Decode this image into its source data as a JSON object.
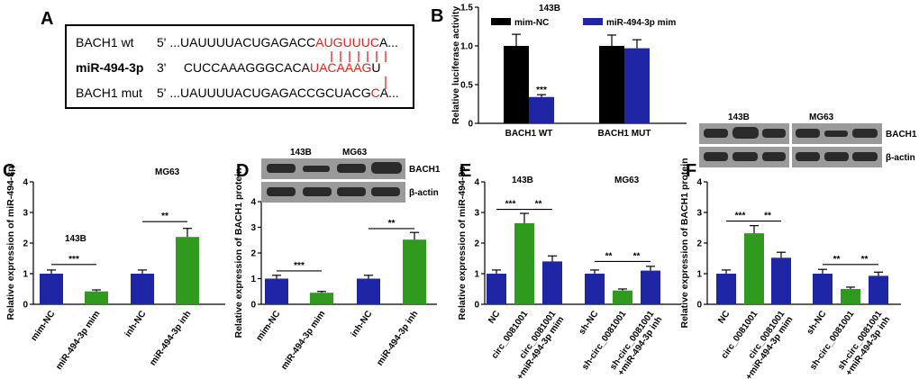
{
  "panels": {
    "A": {
      "letter": "A",
      "rows": [
        {
          "name": "BACH1 wt",
          "prime": "5'",
          "seq_black": "...UAUUUUACUGAGACC",
          "seq_red": "AUGUUUC",
          "seq_tail": "A..."
        },
        {
          "name": "miR-494-3p",
          "prime": "3'",
          "seq_black": "CUCCAAAGGGCACA",
          "seq_red": "UACAAAG",
          "seq_tail": "U"
        },
        {
          "name": "BACH1 mut",
          "prime": "5'",
          "seq_black": "...UAUUUUACUGAGACCGCUACG",
          "seq_red": "C",
          "seq_tail": "A..."
        }
      ]
    },
    "B": {
      "letter": "B"
    },
    "C": {
      "letter": "C",
      "group_labels": [
        "143B",
        "MG63"
      ]
    },
    "D": {
      "letter": "D",
      "blot": {
        "cell_lines": [
          "143B",
          "MG63"
        ],
        "bands": [
          "BACH1",
          "β-actin"
        ]
      }
    },
    "E": {
      "letter": "E",
      "group_labels": [
        "143B",
        "MG63"
      ]
    },
    "F": {
      "letter": "F",
      "blot": {
        "cell_lines": [
          "143B",
          "MG63"
        ],
        "bands": [
          "BACH1",
          "β-actin"
        ]
      }
    }
  },
  "colors": {
    "black": "#000000",
    "blue": "#1f26a6",
    "green": "#2f9a1e",
    "red": "#e3211c"
  },
  "chart_data": [
    {
      "id": "B",
      "type": "bar",
      "title": "143B",
      "categories": [
        "BACH1 WT",
        "BACH1 MUT"
      ],
      "series": [
        {
          "name": "mim-NC",
          "color": "#000000",
          "values": [
            1.0,
            1.0
          ],
          "errors": [
            0.15,
            0.14
          ]
        },
        {
          "name": "miR-494-3p mim",
          "color": "#1f26a6",
          "values": [
            0.34,
            0.97
          ],
          "errors": [
            0.03,
            0.11
          ]
        }
      ],
      "ylabel": "Relative luciferase activity",
      "ylim": [
        0,
        1.5
      ],
      "yticks": [
        0,
        0.5,
        1.0,
        1.5
      ],
      "ytick_labels": [
        "0",
        "0.5",
        "1.0",
        "1.5"
      ],
      "significance": [
        {
          "text": "***",
          "category": 0,
          "series": 1
        }
      ]
    },
    {
      "id": "C",
      "type": "bar",
      "categories": [
        "mim-NC",
        "miR-494-3p mim",
        "inh-NC",
        "miR-494-3p inh"
      ],
      "values": [
        1.0,
        0.42,
        1.0,
        2.2
      ],
      "errors": [
        0.12,
        0.05,
        0.12,
        0.28
      ],
      "colors": [
        "#1f26a6",
        "#2f9a1e",
        "#1f26a6",
        "#2f9a1e"
      ],
      "ylabel": "Relative expression of miR-494-3p",
      "ylim": [
        0,
        4
      ],
      "yticks": [
        0,
        1,
        2,
        3,
        4
      ],
      "ytick_labels": [
        "0",
        "1",
        "2",
        "3",
        "4"
      ],
      "comparisons": [
        {
          "from": 0,
          "to": 1,
          "text": "***",
          "y": 1.3
        },
        {
          "from": 2,
          "to": 3,
          "text": "**",
          "y": 2.7
        }
      ]
    },
    {
      "id": "D",
      "type": "bar",
      "categories": [
        "mim-NC",
        "miR-494-3p mim",
        "inh-NC",
        "miR-494-3p inh"
      ],
      "values": [
        1.0,
        0.45,
        1.0,
        2.52
      ],
      "errors": [
        0.13,
        0.05,
        0.13,
        0.28
      ],
      "colors": [
        "#1f26a6",
        "#2f9a1e",
        "#1f26a6",
        "#2f9a1e"
      ],
      "ylabel": "Relative expression of BACH1 protein",
      "ylim": [
        0,
        4
      ],
      "yticks": [
        0,
        1,
        2,
        3,
        4
      ],
      "ytick_labels": [
        "0",
        "1",
        "2",
        "3",
        "4"
      ],
      "comparisons": [
        {
          "from": 0,
          "to": 1,
          "text": "***",
          "y": 1.3
        },
        {
          "from": 2,
          "to": 3,
          "text": "**",
          "y": 2.95
        }
      ]
    },
    {
      "id": "E",
      "type": "bar",
      "categories": [
        "NC",
        "circ_0081001",
        "circ_0081001\n+miR-494-3p mim",
        "sh-NC",
        "sh-circ_0081001",
        "sh-circ_0081001\n+miR-494-3p inh"
      ],
      "values": [
        1.0,
        2.65,
        1.4,
        1.0,
        0.45,
        1.1
      ],
      "errors": [
        0.12,
        0.32,
        0.18,
        0.12,
        0.05,
        0.14
      ],
      "colors": [
        "#1f26a6",
        "#2f9a1e",
        "#1f26a6",
        "#1f26a6",
        "#2f9a1e",
        "#1f26a6"
      ],
      "ylabel": "Relative expression of miR-494-3p",
      "ylim": [
        0,
        4
      ],
      "yticks": [
        0,
        1,
        2,
        3,
        4
      ],
      "ytick_labels": [
        "0",
        "1",
        "2",
        "3",
        "4"
      ],
      "comparisons": [
        {
          "from": 0,
          "to": 1,
          "text": "***",
          "y": 3.1
        },
        {
          "from": 1,
          "to": 2,
          "text": "**",
          "y": 3.1
        },
        {
          "from": 3,
          "to": 4,
          "text": "**",
          "y": 1.4
        },
        {
          "from": 4,
          "to": 5,
          "text": "**",
          "y": 1.4
        }
      ]
    },
    {
      "id": "F",
      "type": "bar",
      "categories": [
        "NC",
        "circ_0081001",
        "circ_0081001\n+miR-494-3p mim",
        "sh-NC",
        "sh-circ_0081001",
        "sh-circ_0081001\n+miR-494-3p inh"
      ],
      "values": [
        1.0,
        2.32,
        1.52,
        1.0,
        0.5,
        0.93
      ],
      "errors": [
        0.12,
        0.25,
        0.18,
        0.14,
        0.06,
        0.12
      ],
      "colors": [
        "#1f26a6",
        "#2f9a1e",
        "#1f26a6",
        "#1f26a6",
        "#2f9a1e",
        "#1f26a6"
      ],
      "ylabel": "Relative expression of BACH1 protein",
      "ylim": [
        0,
        4
      ],
      "yticks": [
        0,
        1,
        2,
        3,
        4
      ],
      "ytick_labels": [
        "0",
        "1",
        "2",
        "3",
        "4"
      ],
      "comparisons": [
        {
          "from": 0,
          "to": 1,
          "text": "***",
          "y": 2.72
        },
        {
          "from": 1,
          "to": 2,
          "text": "**",
          "y": 2.72
        },
        {
          "from": 3,
          "to": 4,
          "text": "**",
          "y": 1.3
        },
        {
          "from": 4,
          "to": 5,
          "text": "**",
          "y": 1.3
        }
      ]
    }
  ]
}
